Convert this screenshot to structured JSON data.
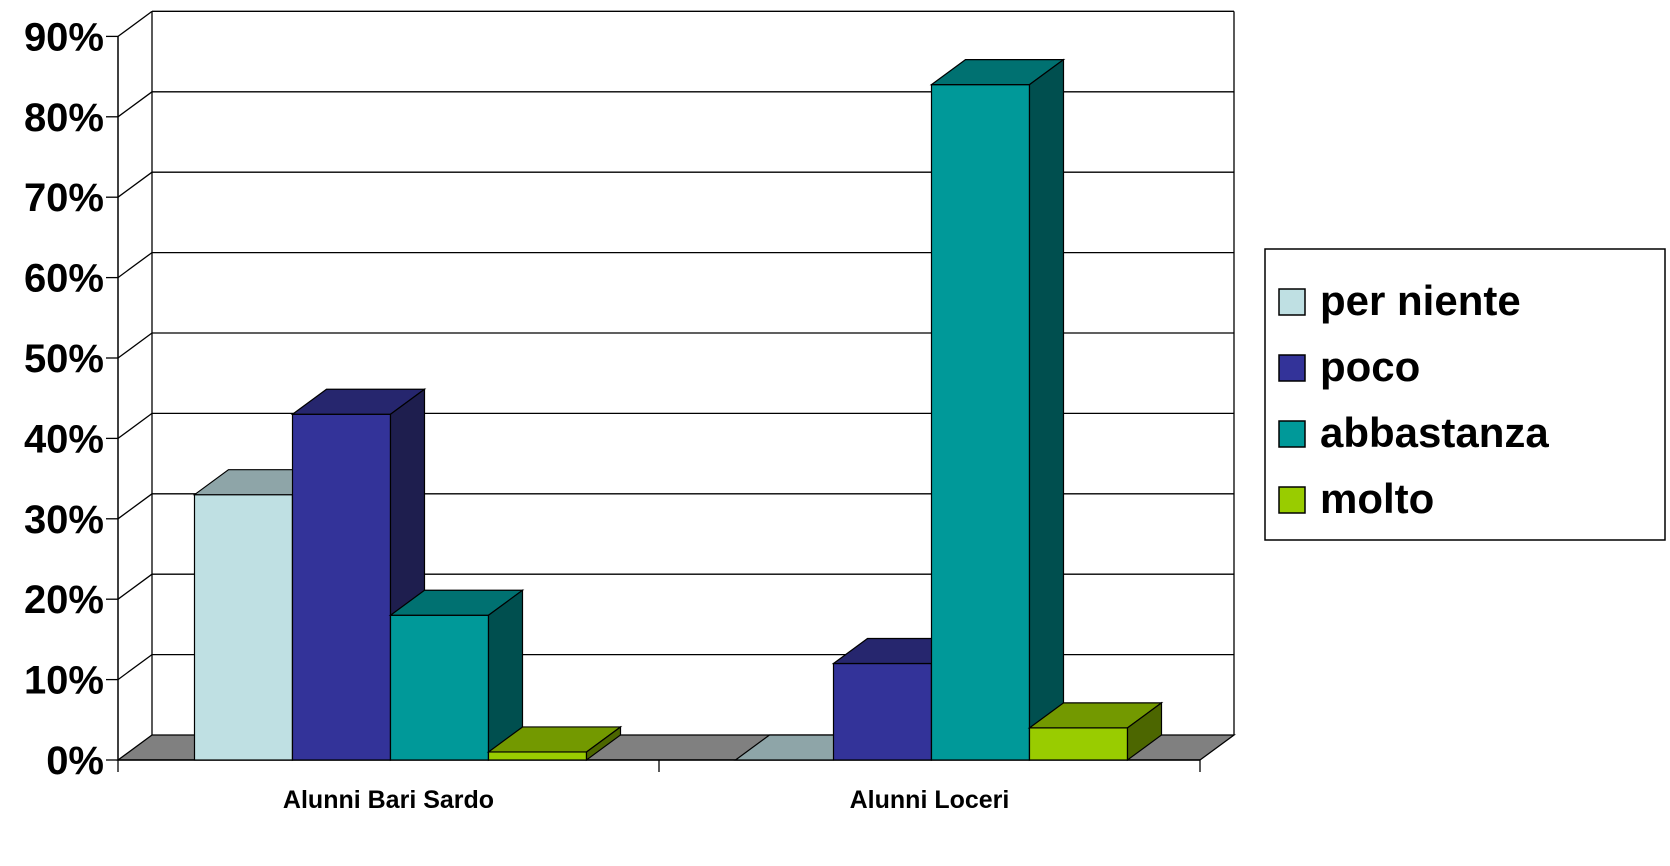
{
  "chart_data": {
    "type": "bar",
    "style": "3d-clustered-column",
    "title": "",
    "xlabel": "",
    "ylabel": "",
    "ylim": [
      0,
      0.9
    ],
    "y_tick_format": "percent",
    "grid": true,
    "legend_position": "right",
    "categories": [
      "Alunni Bari Sardo",
      "Alunni Loceri"
    ],
    "series": [
      {
        "name": "per niente",
        "values": [
          0.33,
          0.0
        ],
        "color": "#BFE0E3",
        "top_color": "#8EA5A8",
        "side_color": "#7E9A9D"
      },
      {
        "name": "poco",
        "values": [
          0.43,
          0.12
        ],
        "color": "#333399",
        "top_color": "#26266E",
        "side_color": "#1E1E4E"
      },
      {
        "name": "abbastanza",
        "values": [
          0.18,
          0.84
        ],
        "color": "#009999",
        "top_color": "#007171",
        "side_color": "#004F4F"
      },
      {
        "name": "molto",
        "values": [
          0.01,
          0.04
        ],
        "color": "#99CC00",
        "top_color": "#739900",
        "side_color": "#4C6600"
      }
    ],
    "y_ticks": [
      "0%",
      "10%",
      "20%",
      "30%",
      "40%",
      "50%",
      "60%",
      "70%",
      "80%",
      "90%"
    ],
    "floor_color": "#808080",
    "background_color": "#ffffff"
  }
}
